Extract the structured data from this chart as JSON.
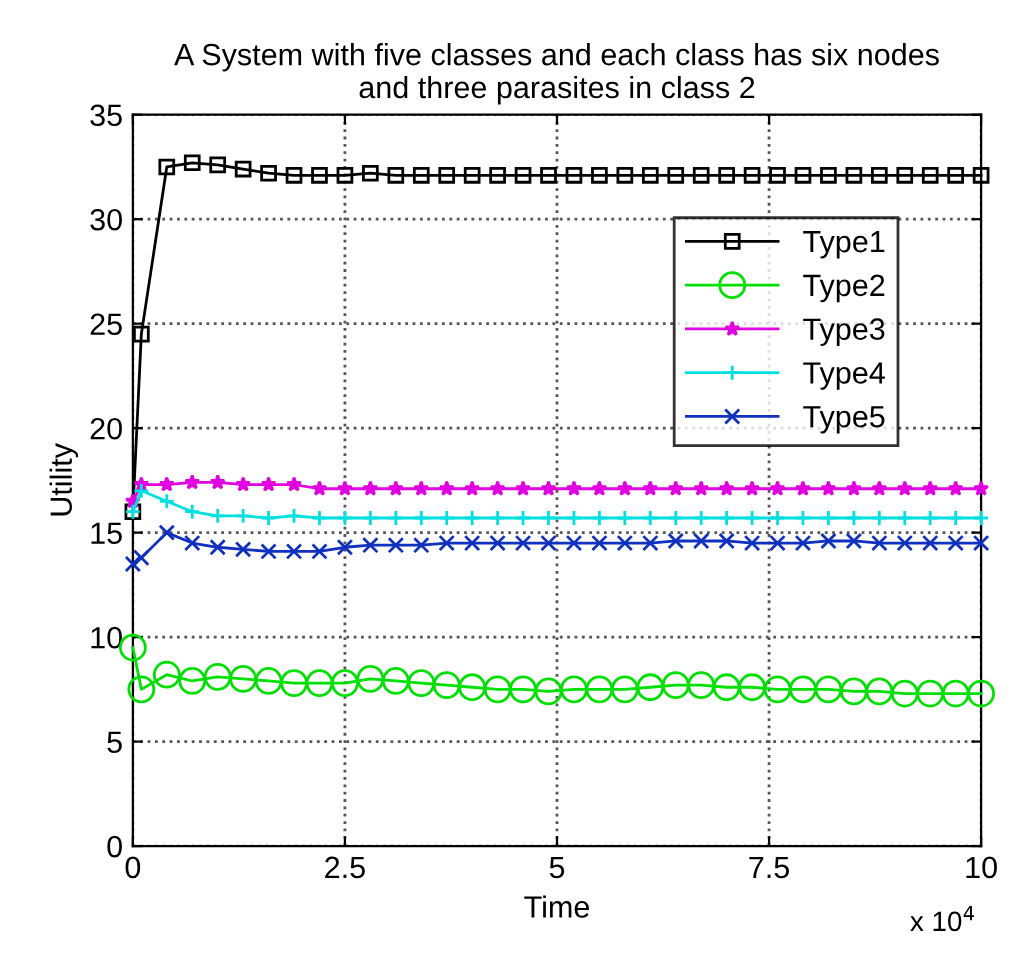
{
  "chart_data": {
    "type": "line",
    "title": "A System with five classes and each class has six nodes\nand three parasites in class 2",
    "xlabel": "Time",
    "ylabel": "Utility",
    "x": [
      0,
      0.1,
      0.4,
      0.7,
      1.0,
      1.3,
      1.6,
      1.9,
      2.2,
      2.5,
      2.8,
      3.1,
      3.4,
      3.7,
      4.0,
      4.3,
      4.6,
      4.9,
      5.2,
      5.5,
      5.8,
      6.1,
      6.4,
      6.7,
      7.0,
      7.3,
      7.6,
      7.9,
      8.2,
      8.5,
      8.8,
      9.1,
      9.4,
      9.7,
      10
    ],
    "series": [
      {
        "name": "Type1",
        "color": "#000000",
        "marker": "square",
        "values": [
          16,
          24.5,
          32.5,
          32.7,
          32.6,
          32.4,
          32.2,
          32.1,
          32.1,
          32.1,
          32.2,
          32.1,
          32.1,
          32.1,
          32.1,
          32.1,
          32.1,
          32.1,
          32.1,
          32.1,
          32.1,
          32.1,
          32.1,
          32.1,
          32.1,
          32.1,
          32.1,
          32.1,
          32.1,
          32.1,
          32.1,
          32.1,
          32.1,
          32.1,
          32.1
        ]
      },
      {
        "name": "Type2",
        "color": "#00e000",
        "marker": "circle",
        "values": [
          9.5,
          7.5,
          8.2,
          7.9,
          8.1,
          8.0,
          7.9,
          7.8,
          7.8,
          7.8,
          8.0,
          7.9,
          7.8,
          7.7,
          7.6,
          7.5,
          7.5,
          7.4,
          7.5,
          7.5,
          7.5,
          7.6,
          7.7,
          7.7,
          7.6,
          7.6,
          7.5,
          7.5,
          7.5,
          7.4,
          7.4,
          7.3,
          7.3,
          7.3,
          7.3
        ]
      },
      {
        "name": "Type3",
        "color": "#e000e0",
        "marker": "star",
        "values": [
          16.5,
          17.3,
          17.3,
          17.4,
          17.4,
          17.3,
          17.3,
          17.3,
          17.1,
          17.1,
          17.1,
          17.1,
          17.1,
          17.1,
          17.1,
          17.1,
          17.1,
          17.1,
          17.1,
          17.1,
          17.1,
          17.1,
          17.1,
          17.1,
          17.1,
          17.1,
          17.1,
          17.1,
          17.1,
          17.1,
          17.1,
          17.1,
          17.1,
          17.1,
          17.1
        ]
      },
      {
        "name": "Type4",
        "color": "#00e0e0",
        "marker": "plus",
        "values": [
          16,
          17,
          16.5,
          16.0,
          15.8,
          15.8,
          15.7,
          15.8,
          15.7,
          15.7,
          15.7,
          15.7,
          15.7,
          15.7,
          15.7,
          15.7,
          15.7,
          15.7,
          15.7,
          15.7,
          15.7,
          15.7,
          15.7,
          15.7,
          15.7,
          15.7,
          15.7,
          15.7,
          15.7,
          15.7,
          15.7,
          15.7,
          15.7,
          15.7,
          15.7
        ]
      },
      {
        "name": "Type5",
        "color": "#1030c0",
        "marker": "cross",
        "values": [
          13.5,
          13.8,
          15.0,
          14.5,
          14.3,
          14.2,
          14.1,
          14.1,
          14.1,
          14.3,
          14.4,
          14.4,
          14.4,
          14.5,
          14.5,
          14.5,
          14.5,
          14.5,
          14.5,
          14.5,
          14.5,
          14.5,
          14.6,
          14.6,
          14.6,
          14.5,
          14.5,
          14.5,
          14.6,
          14.6,
          14.5,
          14.5,
          14.5,
          14.5,
          14.5
        ]
      }
    ],
    "xlim": [
      0,
      10
    ],
    "xticks": [
      0,
      2.5,
      5,
      7.5,
      10
    ],
    "ylim": [
      0,
      35
    ],
    "yticks": [
      0,
      5,
      10,
      15,
      20,
      25,
      30,
      35
    ],
    "annotations": [
      "x 10$^{4}$"
    ],
    "grid": true,
    "legend": "top right",
    "line_style": "solid"
  }
}
